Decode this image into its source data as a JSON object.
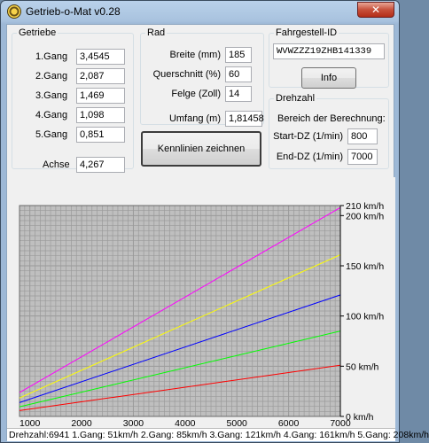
{
  "window": {
    "title": "Getrieb-o-Mat v0.28",
    "close_glyph": "✕"
  },
  "getriebe": {
    "legend": "Getriebe",
    "gears": [
      {
        "label": "1.Gang",
        "value": "3,4545"
      },
      {
        "label": "2.Gang",
        "value": "2,087"
      },
      {
        "label": "3.Gang",
        "value": "1,469"
      },
      {
        "label": "4.Gang",
        "value": "1,098"
      },
      {
        "label": "5.Gang",
        "value": "0,851"
      }
    ],
    "achse_label": "Achse",
    "achse_value": "4,267"
  },
  "rad": {
    "legend": "Rad",
    "breite_label": "Breite (mm)",
    "breite_value": "185",
    "querschnitt_label": "Querschnitt (%)",
    "querschnitt_value": "60",
    "felge_label": "Felge (Zoll)",
    "felge_value": "14",
    "umfang_label": "Umfang (m)",
    "umfang_value": "1,81458"
  },
  "kennlinien_button": "Kennlinien zeichnen",
  "fahrgestell": {
    "legend": "Fahrgestell-ID",
    "value": "WVWZZZ19ZHB141339",
    "info_button": "Info"
  },
  "drehzahl": {
    "legend": "Drehzahl",
    "range_label": "Bereich der Berechnung:",
    "start_label": "Start-DZ (1/min)",
    "start_value": "800",
    "end_label": "End-DZ (1/min)",
    "end_value": "7000"
  },
  "chart_data": {
    "type": "line",
    "x_ticks": [
      "1000",
      "2000",
      "3000",
      "4000",
      "5000",
      "6000",
      "7000"
    ],
    "xlim": [
      800,
      7000
    ],
    "y_ticks": [
      "0 km/h",
      "50 km/h",
      "100 km/h",
      "150 km/h",
      "200 km/h",
      "210 km/h"
    ],
    "y_tick_values": [
      0,
      50,
      100,
      150,
      200,
      210
    ],
    "ylim": [
      0,
      210
    ],
    "grid": true,
    "series": [
      {
        "color": "#ff0000",
        "x": [
          800,
          7000
        ],
        "y": [
          5.8,
          51
        ]
      },
      {
        "color": "#00ff00",
        "x": [
          800,
          7000
        ],
        "y": [
          9.6,
          85
        ]
      },
      {
        "color": "#0000ff",
        "x": [
          800,
          7000
        ],
        "y": [
          13.8,
          121
        ]
      },
      {
        "color": "#ffff00",
        "x": [
          800,
          7000
        ],
        "y": [
          18.4,
          161
        ]
      },
      {
        "color": "#ff00ff",
        "x": [
          800,
          7000
        ],
        "y": [
          23.8,
          208
        ]
      }
    ]
  },
  "status": {
    "text": "Drehzahl:6941 1.Gang: 51km/h 2.Gang: 85km/h 3.Gang: 121km/h 4.Gang: 161km/h 5.Gang: 208km/h"
  }
}
